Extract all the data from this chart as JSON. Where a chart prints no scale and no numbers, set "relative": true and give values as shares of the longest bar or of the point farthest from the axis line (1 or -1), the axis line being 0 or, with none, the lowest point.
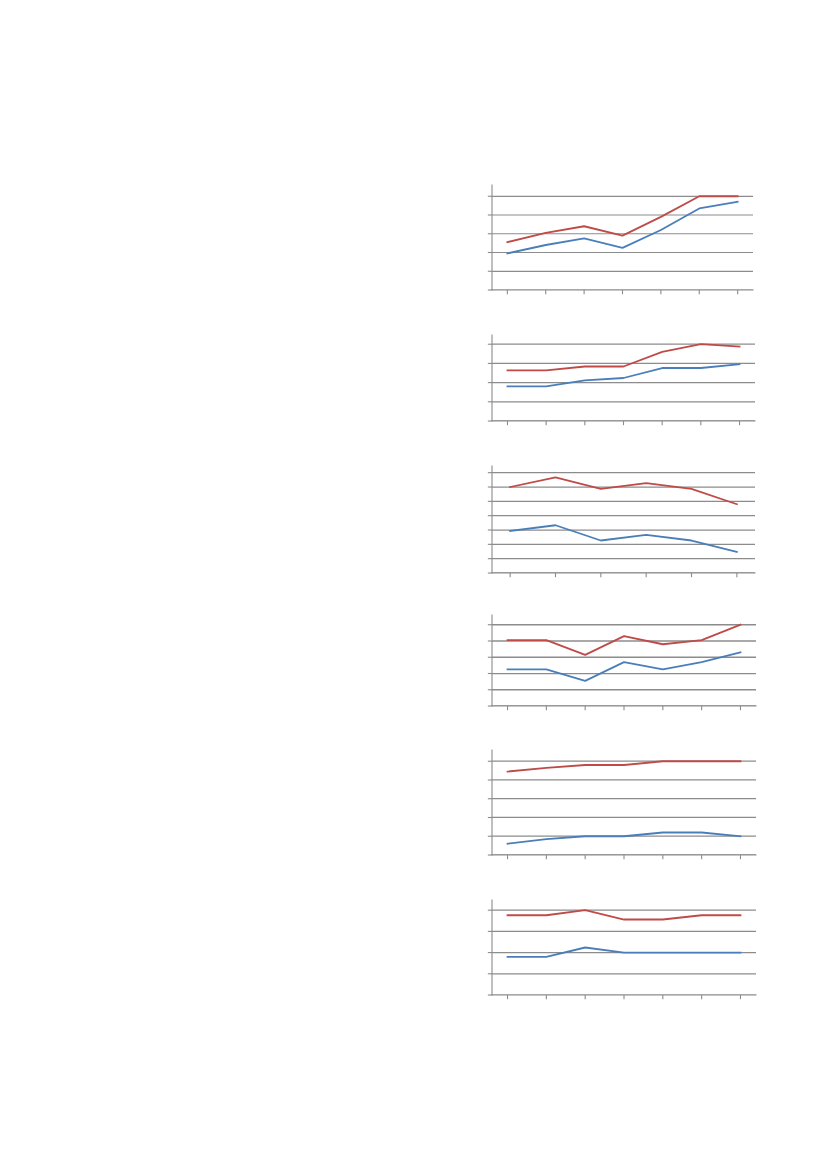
{
  "chart_data": [
    {
      "type": "line",
      "relative": true,
      "grid": "y",
      "categories": [
        null,
        null,
        null,
        null,
        null,
        null,
        null
      ],
      "series": [
        {
          "color": "#be4b48",
          "values": [
            0.51,
            0.61,
            0.68,
            0.58,
            0.78,
            1,
            1
          ]
        },
        {
          "color": "#4a7ebb",
          "values": [
            0.39,
            0.48,
            0.55,
            0.45,
            0.64,
            0.87,
            0.94
          ]
        }
      ]
    },
    {
      "type": "line",
      "relative": true,
      "grid": "y",
      "categories": [
        null,
        null,
        null,
        null,
        null,
        null,
        null
      ],
      "series": [
        {
          "color": "#be4b48",
          "values": [
            0.66,
            0.66,
            0.71,
            0.71,
            0.9,
            1,
            0.97
          ]
        },
        {
          "color": "#4a7ebb",
          "values": [
            0.45,
            0.45,
            0.53,
            0.56,
            0.69,
            0.69,
            0.74
          ]
        }
      ]
    },
    {
      "type": "line",
      "relative": true,
      "grid": "y",
      "categories": [
        null,
        null,
        null,
        null,
        null,
        null
      ],
      "series": [
        {
          "color": "#be4b48",
          "values": [
            0.9,
            1,
            0.88,
            0.94,
            0.88,
            0.72
          ]
        },
        {
          "color": "#4a7ebb",
          "values": [
            0.44,
            0.5,
            0.34,
            0.4,
            0.34,
            0.22
          ]
        }
      ]
    },
    {
      "type": "line",
      "relative": true,
      "grid": "y",
      "categories": [
        null,
        null,
        null,
        null,
        null,
        null,
        null
      ],
      "series": [
        {
          "color": "#be4b48",
          "values": [
            0.81,
            0.81,
            0.63,
            0.86,
            0.76,
            0.81,
            1
          ]
        },
        {
          "color": "#4a7ebb",
          "values": [
            0.45,
            0.45,
            0.31,
            0.54,
            0.45,
            0.54,
            0.66
          ]
        }
      ]
    },
    {
      "type": "line",
      "relative": true,
      "grid": "y",
      "categories": [
        null,
        null,
        null,
        null,
        null,
        null,
        null
      ],
      "series": [
        {
          "color": "#be4b48",
          "values": [
            0.89,
            0.93,
            0.96,
            0.96,
            1,
            1,
            1
          ]
        },
        {
          "color": "#4a7ebb",
          "values": [
            0.12,
            0.17,
            0.2,
            0.2,
            0.24,
            0.24,
            0.2
          ]
        }
      ]
    },
    {
      "type": "line",
      "relative": true,
      "grid": "y",
      "categories": [
        null,
        null,
        null,
        null,
        null,
        null,
        null
      ],
      "series": [
        {
          "color": "#be4b48",
          "values": [
            0.94,
            0.94,
            1,
            0.89,
            0.89,
            0.94,
            0.94
          ]
        },
        {
          "color": "#4a7ebb",
          "values": [
            0.45,
            0.45,
            0.56,
            0.5,
            0.5,
            0.5,
            0.5
          ]
        }
      ]
    }
  ]
}
